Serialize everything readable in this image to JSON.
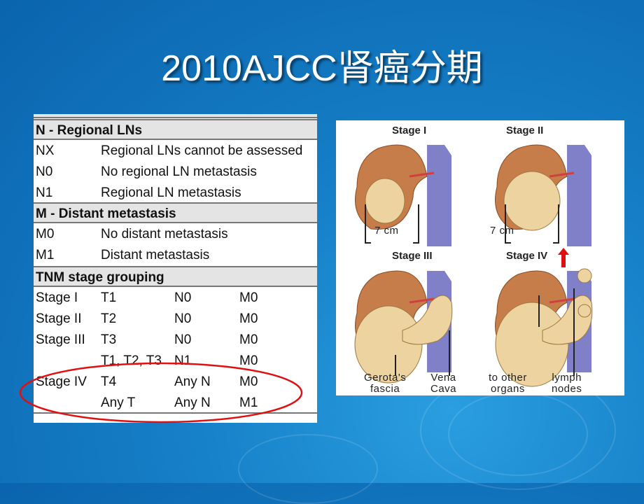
{
  "slide": {
    "title": "2010AJCC肾癌分期"
  },
  "table": {
    "n_header": "N - Regional LNs",
    "n_rows": [
      [
        "NX",
        "Regional LNs cannot be assessed"
      ],
      [
        "N0",
        "No regional LN metastasis"
      ],
      [
        "N1",
        "Regional LN metastasis"
      ]
    ],
    "m_header": "M - Distant metastasis",
    "m_rows": [
      [
        "M0",
        "No distant metastasis"
      ],
      [
        "M1",
        "Distant metastasis"
      ]
    ],
    "tnm_header": "TNM stage grouping",
    "tnm_rows": [
      [
        "Stage I",
        "T1",
        "N0",
        "M0"
      ],
      [
        "Stage II",
        "T2",
        "N0",
        "M0"
      ],
      [
        "Stage III",
        "T3",
        "N0",
        "M0"
      ],
      [
        "",
        "T1, T2, T3",
        "N1",
        "M0"
      ],
      [
        "Stage IV",
        "T4",
        "Any N",
        "M0"
      ],
      [
        "",
        "Any T",
        "Any N",
        "M1"
      ]
    ],
    "highlight_color": "#e01010"
  },
  "illustration": {
    "stages": [
      "Stage I",
      "Stage II",
      "Stage III",
      "Stage IV"
    ],
    "size_label_1": "7 cm",
    "size_label_2": "7 cm",
    "captions": [
      "Gerota's\nfascia",
      "Vena\nCava",
      "to other\norgans",
      "lymph\nnodes"
    ]
  }
}
